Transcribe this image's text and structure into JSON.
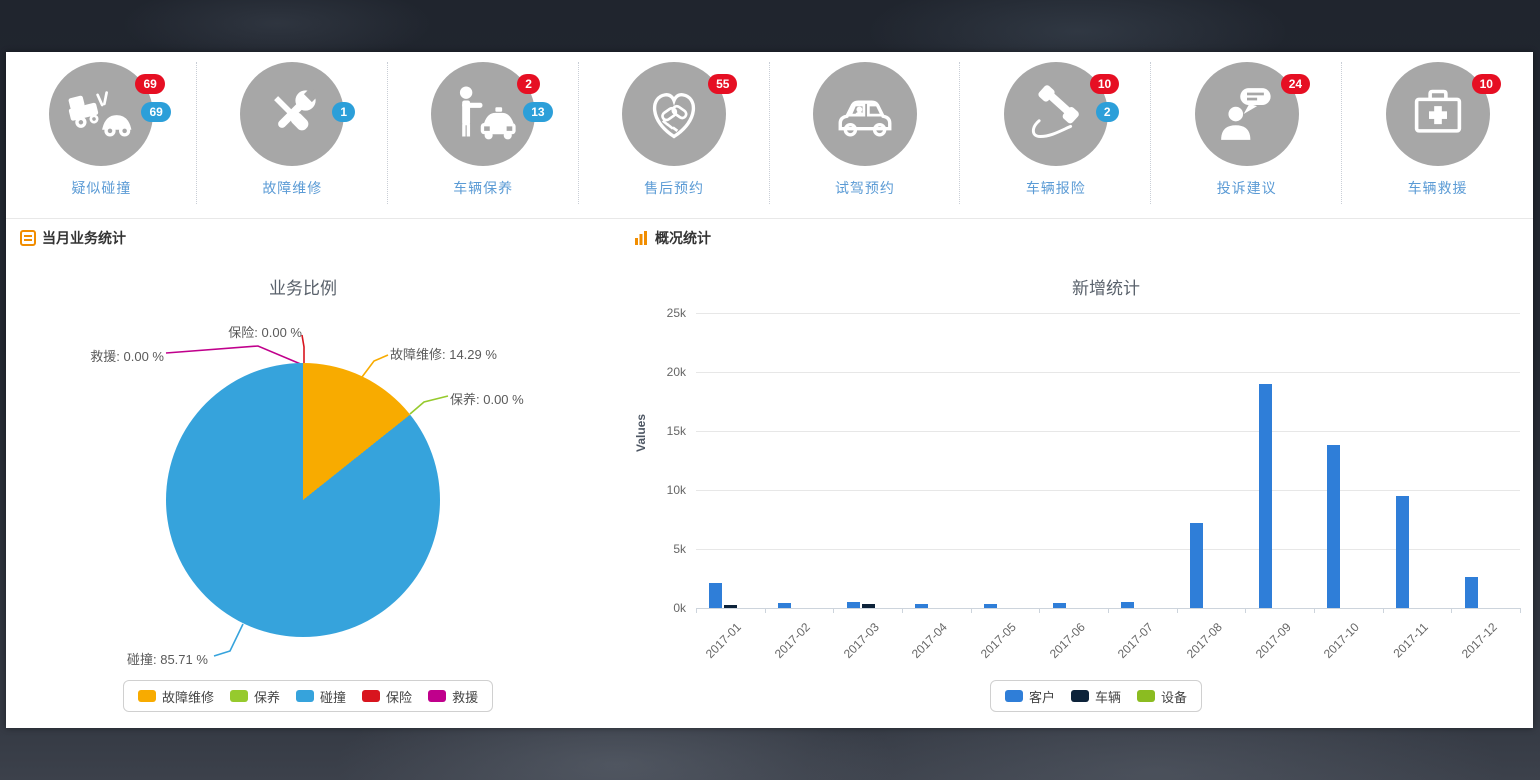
{
  "topnav": {
    "items": [
      {
        "label": "疑似碰撞",
        "icon": "car-collision-icon",
        "badges": [
          {
            "color": "red",
            "value": "69"
          },
          {
            "color": "blue",
            "value": "69"
          }
        ]
      },
      {
        "label": "故障维修",
        "icon": "repair-tools-icon",
        "badges": [
          {
            "color": "blue",
            "value": "1"
          }
        ]
      },
      {
        "label": "车辆保养",
        "icon": "person-taxi-icon",
        "badges": [
          {
            "color": "red",
            "value": "2"
          },
          {
            "color": "blue",
            "value": "13"
          }
        ]
      },
      {
        "label": "售后预约",
        "icon": "handshake-heart-icon",
        "badges": [
          {
            "color": "red",
            "value": "55"
          }
        ]
      },
      {
        "label": "试驾预约",
        "icon": "car-driver-icon",
        "badges": []
      },
      {
        "label": "车辆报险",
        "icon": "phone-handset-icon",
        "badges": [
          {
            "color": "red",
            "value": "10"
          },
          {
            "color": "blue",
            "value": "2"
          }
        ]
      },
      {
        "label": "投诉建议",
        "icon": "person-chat-icon",
        "badges": [
          {
            "color": "red",
            "value": "24"
          }
        ]
      },
      {
        "label": "车辆救援",
        "icon": "first-aid-kit-icon",
        "badges": [
          {
            "color": "red",
            "value": "10"
          }
        ]
      }
    ]
  },
  "sections": {
    "left_title": "当月业务统计",
    "right_title": "概况统计"
  },
  "colors": {
    "badge_red": "#e60f23",
    "badge_blue": "#2c9fd9",
    "icon_circle_gray": "#a7a7a7",
    "nav_label_blue": "#5b9bd5"
  },
  "chart_data": [
    {
      "type": "pie",
      "title": "业务比例",
      "slices": [
        {
          "name": "故障维修",
          "value": 14.29,
          "color": "#f8ab00",
          "label": "故障维修: 14.29 %"
        },
        {
          "name": "保养",
          "value": 0,
          "color": "#96ca2d",
          "label": "保养: 0.00 %"
        },
        {
          "name": "碰撞",
          "value": 85.71,
          "color": "#36a3dc",
          "label": "碰撞: 85.71 %"
        },
        {
          "name": "保险",
          "value": 0,
          "color": "#d8151e",
          "label": "保险: 0.00 %"
        },
        {
          "name": "救援",
          "value": 0,
          "color": "#c0008c",
          "label": "救援: 0.00 %"
        }
      ],
      "legend_order": [
        0,
        1,
        2,
        3,
        4
      ],
      "legend_position": "bottom"
    },
    {
      "type": "bar",
      "title": "新增统计",
      "ylabel": "Values",
      "ylim": [
        0,
        25000
      ],
      "yticks": [
        "25k",
        "20k",
        "15k",
        "10k",
        "5k",
        "0k"
      ],
      "categories": [
        "2017-01",
        "2017-02",
        "2017-03",
        "2017-04",
        "2017-05",
        "2017-06",
        "2017-07",
        "2017-08",
        "2017-09",
        "2017-10",
        "2017-11",
        "2017-12"
      ],
      "series": [
        {
          "name": "客户",
          "color": "#2f7ed8",
          "values": [
            2100,
            400,
            500,
            350,
            350,
            450,
            500,
            7200,
            19000,
            13800,
            9500,
            2600
          ]
        },
        {
          "name": "车辆",
          "color": "#0d233a",
          "values": [
            250,
            0,
            300,
            0,
            0,
            0,
            0,
            0,
            0,
            0,
            0,
            0
          ]
        },
        {
          "name": "设备",
          "color": "#8bbc21",
          "values": [
            0,
            0,
            0,
            0,
            0,
            0,
            0,
            0,
            0,
            0,
            0,
            0
          ]
        }
      ],
      "grid": true,
      "legend_position": "bottom"
    }
  ]
}
